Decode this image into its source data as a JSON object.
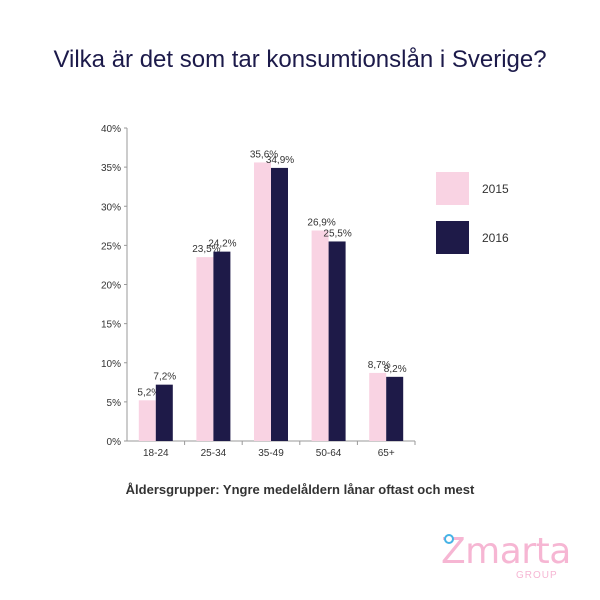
{
  "title": "Vilka är det som tar konsumtionslån i Sverige?",
  "xlabel": "Åldersgrupper: Yngre medelåldern lånar oftast och mest",
  "logo": {
    "word": "Zmarta",
    "sub": "GROUP"
  },
  "chart_data": {
    "type": "bar",
    "categories": [
      "18-24",
      "25-34",
      "35-49",
      "50-64",
      "65+"
    ],
    "series": [
      {
        "name": "2015",
        "values": [
          5.2,
          23.5,
          35.6,
          26.9,
          8.7
        ],
        "labels": [
          "5,2%",
          "23,5%",
          "35,6%",
          "26,9%",
          "8,7%"
        ],
        "color": "#f9d3e3"
      },
      {
        "name": "2016",
        "values": [
          7.2,
          24.2,
          34.9,
          25.5,
          8.2
        ],
        "labels": [
          "7,2%",
          "24,2%",
          "34,9%",
          "25,5%",
          "8,2%"
        ],
        "color": "#1e1a48"
      }
    ],
    "ylim": [
      0,
      40
    ],
    "yticks": [
      "0%",
      "5%",
      "10%",
      "15%",
      "20%",
      "25%",
      "30%",
      "35%",
      "40%"
    ],
    "legend_position": "right",
    "grid": false
  }
}
